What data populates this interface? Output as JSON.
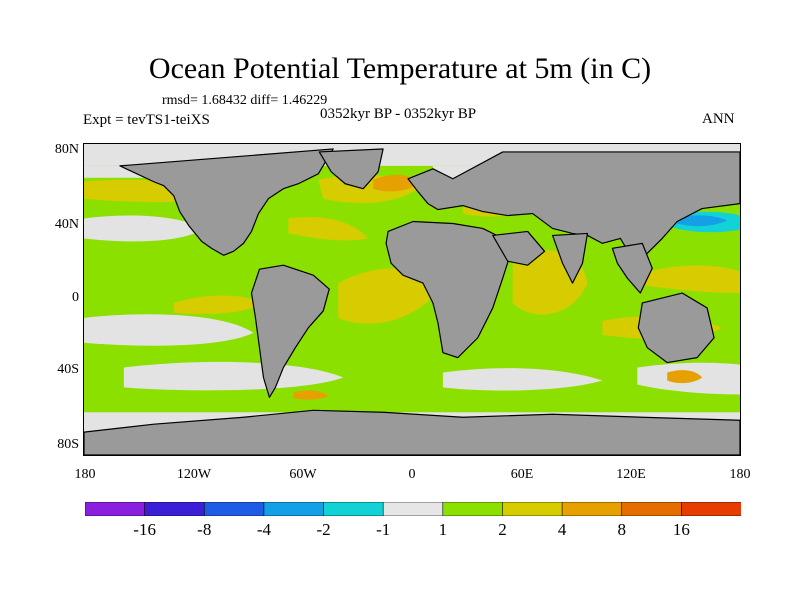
{
  "title": "Ocean Potential Temperature at 5m (in C)",
  "stats": "rmsd= 1.68432 diff= 1.46229",
  "period": "0352kyr BP - 0352kyr BP",
  "expt": "Expt = tevTS1-teiXS",
  "season": "ANN",
  "lat_labels": [
    "80N",
    "40N",
    "0",
    "40S",
    "80S"
  ],
  "lon_labels": [
    "180",
    "120W",
    "60W",
    "0",
    "60E",
    "120E",
    "180"
  ],
  "colorbar": {
    "labels": [
      "-16",
      "-8",
      "-4",
      "-2",
      "-1",
      "1",
      "2",
      "4",
      "8",
      "16"
    ],
    "colors": [
      "#8b1fe0",
      "#3a1fd6",
      "#1f5ce6",
      "#14a0e6",
      "#12d2d6",
      "#e6e6e6",
      "#8ce000",
      "#d6cc00",
      "#e6a000",
      "#e66e00",
      "#e63c00"
    ]
  },
  "colors": {
    "land": "#9a9a9a",
    "ice": "#e3e3e3",
    "ocean_green": "#8ce000",
    "ocean_yellow": "#d6cc00",
    "ocean_orange": "#e6a000",
    "ocean_blue": "#14a0e6",
    "ocean_cyan": "#12d2d6"
  }
}
